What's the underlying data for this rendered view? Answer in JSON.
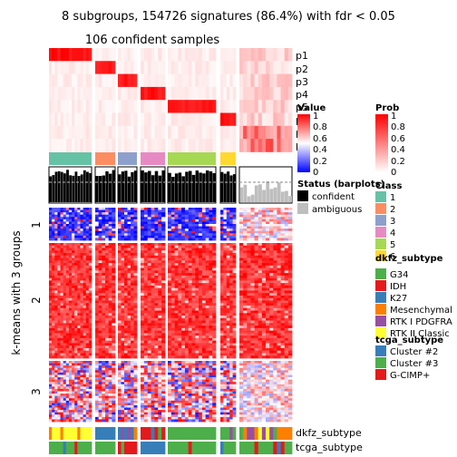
{
  "title": "8 subgroups, 154726 signatures (86.4%) with fdr < 0.05",
  "subtitle": "106 confident samples",
  "ylabel": "k-means with 3 groups",
  "prob_rows": [
    "p1",
    "p2",
    "p3",
    "p4",
    "p5",
    "p6",
    "p7",
    "p8"
  ],
  "bottom_labels": [
    "dkfz_subtype",
    "tcga_subtype"
  ],
  "row_groups": [
    "1",
    "2",
    "3"
  ],
  "legends": {
    "value": {
      "title": "Value",
      "ticks": [
        "1",
        "0.8",
        "0.6",
        "0.4",
        "0.2",
        "0"
      ]
    },
    "prob": {
      "title": "Prob",
      "ticks": [
        "1",
        "0.8",
        "0.6",
        "0.4",
        "0.2",
        "0"
      ]
    },
    "status": {
      "title": "Status (barplots)",
      "items": [
        {
          "label": "confident",
          "color": "#000000"
        },
        {
          "label": "ambiguous",
          "color": "#bebebe"
        }
      ]
    },
    "class": {
      "title": "Class",
      "items": [
        {
          "label": "1",
          "color": "#66c2a5"
        },
        {
          "label": "2",
          "color": "#fc8d62"
        },
        {
          "label": "3",
          "color": "#8da0cb"
        },
        {
          "label": "4",
          "color": "#e78ac3"
        },
        {
          "label": "5",
          "color": "#a6d854"
        },
        {
          "label": "6",
          "color": "#ffd92f"
        }
      ]
    },
    "dkfz": {
      "title": "dkfz_subtype",
      "items": [
        {
          "label": "G34",
          "color": "#4daf4a"
        },
        {
          "label": "IDH",
          "color": "#e41a1c"
        },
        {
          "label": "K27",
          "color": "#377eb8"
        },
        {
          "label": "Mesenchymal",
          "color": "#ff7f00"
        },
        {
          "label": "RTK I PDGFRA",
          "color": "#984ea3"
        },
        {
          "label": "RTK II Classic",
          "color": "#ffff33"
        }
      ]
    },
    "tcga": {
      "title": "tcga_subtype",
      "items": [
        {
          "label": "Cluster #2",
          "color": "#377eb8"
        },
        {
          "label": "Cluster #3",
          "color": "#4daf4a"
        },
        {
          "label": "G-CIMP+",
          "color": "#e41a1c"
        }
      ]
    }
  },
  "chart_data": {
    "type": "heatmap",
    "column_groups": [
      {
        "class": "1",
        "columns": 15
      },
      {
        "class": "2",
        "columns": 6
      },
      {
        "class": "3",
        "columns": 6
      },
      {
        "class": "4",
        "columns": 7
      },
      {
        "class": "5",
        "columns": 14
      },
      {
        "class": "6",
        "columns": 5
      },
      {
        "class": "ambiguous",
        "columns": 14
      }
    ],
    "row_groups": [
      {
        "label": "1",
        "pattern": "mostly low (blue)"
      },
      {
        "label": "2",
        "pattern": "mostly high (red)"
      },
      {
        "label": "3",
        "pattern": "mixed"
      }
    ],
    "silhouette_dashed_line": 0.8
  }
}
